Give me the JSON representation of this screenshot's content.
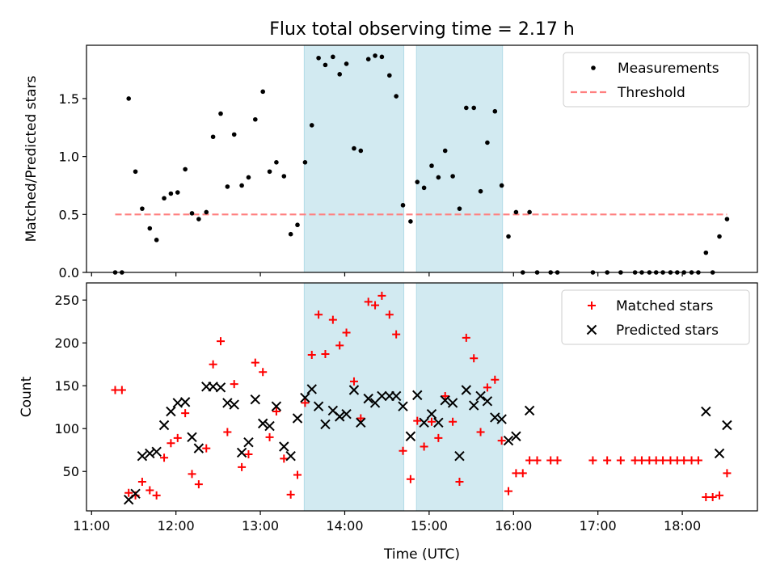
{
  "figure": {
    "title": "Flux total observing time = 2.17 h",
    "xlabel": "Time (UTC)",
    "x_ticks": [
      {
        "h": 11,
        "label": "11:00"
      },
      {
        "h": 12,
        "label": "12:00"
      },
      {
        "h": 13,
        "label": "13:00"
      },
      {
        "h": 14,
        "label": "14:00"
      },
      {
        "h": 15,
        "label": "15:00"
      },
      {
        "h": 16,
        "label": "16:00"
      },
      {
        "h": 17,
        "label": "17:00"
      },
      {
        "h": 18,
        "label": "18:00"
      }
    ],
    "shaded_intervals_hours": [
      [
        13.52,
        14.7
      ],
      [
        14.85,
        15.87
      ]
    ],
    "shade_color": "#add8e6"
  },
  "chart_data": [
    {
      "type": "scatter",
      "ylabel": "Matched/Predicted stars",
      "xlim_hours": [
        10.94,
        18.89
      ],
      "ylim": [
        0,
        1.96
      ],
      "y_ticks": [
        0.0,
        0.5,
        1.0,
        1.5
      ],
      "y_tick_labels": [
        "0.0",
        "0.5",
        "1.0",
        "1.5"
      ],
      "x_tick_labels_shown": false,
      "legend_position": "top-right",
      "series": [
        {
          "name": "Measurements",
          "marker": "dot",
          "color": "#000000",
          "points": [
            [
              11.28,
              0
            ],
            [
              11.36,
              0
            ],
            [
              11.44,
              1.5
            ],
            [
              11.52,
              0.87
            ],
            [
              11.6,
              0.55
            ],
            [
              11.69,
              0.38
            ],
            [
              11.77,
              0.28
            ],
            [
              11.86,
              0.64
            ],
            [
              11.94,
              0.68
            ],
            [
              12.02,
              0.69
            ],
            [
              12.11,
              0.89
            ],
            [
              12.19,
              0.51
            ],
            [
              12.27,
              0.46
            ],
            [
              12.36,
              0.52
            ],
            [
              12.44,
              1.17
            ],
            [
              12.53,
              1.37
            ],
            [
              12.61,
              0.74
            ],
            [
              12.69,
              1.19
            ],
            [
              12.78,
              0.75
            ],
            [
              12.86,
              0.82
            ],
            [
              12.94,
              1.32
            ],
            [
              13.03,
              1.56
            ],
            [
              13.11,
              0.87
            ],
            [
              13.19,
              0.95
            ],
            [
              13.28,
              0.83
            ],
            [
              13.36,
              0.33
            ],
            [
              13.44,
              0.41
            ],
            [
              13.53,
              0.95
            ],
            [
              13.61,
              1.27
            ],
            [
              13.69,
              1.85
            ],
            [
              13.77,
              1.79
            ],
            [
              13.86,
              1.86
            ],
            [
              13.94,
              1.71
            ],
            [
              14.02,
              1.8
            ],
            [
              14.11,
              1.07
            ],
            [
              14.19,
              1.05
            ],
            [
              14.28,
              1.84
            ],
            [
              14.36,
              1.87
            ],
            [
              14.44,
              1.86
            ],
            [
              14.53,
              1.7
            ],
            [
              14.61,
              1.52
            ],
            [
              14.69,
              0.58
            ],
            [
              14.78,
              0.44
            ],
            [
              14.86,
              0.78
            ],
            [
              14.94,
              0.73
            ],
            [
              15.03,
              0.92
            ],
            [
              15.11,
              0.82
            ],
            [
              15.19,
              1.05
            ],
            [
              15.28,
              0.83
            ],
            [
              15.36,
              0.55
            ],
            [
              15.44,
              1.42
            ],
            [
              15.53,
              1.42
            ],
            [
              15.61,
              0.7
            ],
            [
              15.69,
              1.12
            ],
            [
              15.78,
              1.39
            ],
            [
              15.86,
              0.75
            ],
            [
              15.94,
              0.31
            ],
            [
              16.03,
              0.52
            ],
            [
              16.11,
              0
            ],
            [
              16.19,
              0.52
            ],
            [
              16.28,
              0
            ],
            [
              16.44,
              0
            ],
            [
              16.52,
              0
            ],
            [
              16.94,
              0
            ],
            [
              17.11,
              0
            ],
            [
              17.27,
              0
            ],
            [
              17.44,
              0
            ],
            [
              17.52,
              0
            ],
            [
              17.61,
              0
            ],
            [
              17.69,
              0
            ],
            [
              17.77,
              0
            ],
            [
              17.86,
              0
            ],
            [
              17.94,
              0
            ],
            [
              18.02,
              0
            ],
            [
              18.11,
              0
            ],
            [
              18.19,
              0
            ],
            [
              18.28,
              0.17
            ],
            [
              18.36,
              0
            ],
            [
              18.44,
              0.31
            ],
            [
              18.53,
              0.46
            ]
          ]
        },
        {
          "name": "Threshold",
          "marker": "dashed-line",
          "color": "#ff7f7f",
          "points": [
            [
              11.28,
              0.5
            ],
            [
              18.53,
              0.5
            ]
          ]
        }
      ]
    },
    {
      "type": "scatter",
      "ylabel": "Count",
      "xlim_hours": [
        10.94,
        18.89
      ],
      "ylim": [
        4,
        270
      ],
      "y_ticks": [
        50,
        100,
        150,
        200,
        250
      ],
      "y_tick_labels": [
        "50",
        "100",
        "150",
        "200",
        "250"
      ],
      "x_tick_labels_shown": true,
      "legend_position": "top-right",
      "series": [
        {
          "name": "Matched stars",
          "marker": "plus",
          "color": "#ff0000",
          "points": [
            [
              11.28,
              145
            ],
            [
              11.36,
              145
            ],
            [
              11.44,
              25
            ],
            [
              11.52,
              22
            ],
            [
              11.6,
              38
            ],
            [
              11.69,
              28
            ],
            [
              11.77,
              22
            ],
            [
              11.86,
              66
            ],
            [
              11.94,
              83
            ],
            [
              12.02,
              89
            ],
            [
              12.11,
              118
            ],
            [
              12.19,
              47
            ],
            [
              12.27,
              35
            ],
            [
              12.36,
              77
            ],
            [
              12.44,
              175
            ],
            [
              12.53,
              202
            ],
            [
              12.61,
              96
            ],
            [
              12.69,
              152
            ],
            [
              12.78,
              55
            ],
            [
              12.86,
              70
            ],
            [
              12.94,
              177
            ],
            [
              13.03,
              166
            ],
            [
              13.11,
              90
            ],
            [
              13.19,
              120
            ],
            [
              13.28,
              65
            ],
            [
              13.36,
              23
            ],
            [
              13.44,
              46
            ],
            [
              13.53,
              130
            ],
            [
              13.61,
              186
            ],
            [
              13.69,
              233
            ],
            [
              13.77,
              187
            ],
            [
              13.86,
              227
            ],
            [
              13.94,
              197
            ],
            [
              14.02,
              212
            ],
            [
              14.11,
              155
            ],
            [
              14.19,
              112
            ],
            [
              14.28,
              248
            ],
            [
              14.36,
              244
            ],
            [
              14.44,
              255
            ],
            [
              14.53,
              233
            ],
            [
              14.61,
              210
            ],
            [
              14.69,
              74
            ],
            [
              14.78,
              41
            ],
            [
              14.86,
              109
            ],
            [
              14.94,
              79
            ],
            [
              15.03,
              108
            ],
            [
              15.11,
              89
            ],
            [
              15.19,
              138
            ],
            [
              15.28,
              108
            ],
            [
              15.36,
              38
            ],
            [
              15.44,
              206
            ],
            [
              15.53,
              182
            ],
            [
              15.61,
              96
            ],
            [
              15.69,
              148
            ],
            [
              15.78,
              157
            ],
            [
              15.86,
              86
            ],
            [
              15.94,
              27
            ],
            [
              16.03,
              48
            ],
            [
              16.11,
              48
            ],
            [
              16.19,
              63
            ],
            [
              16.28,
              63
            ],
            [
              16.44,
              63
            ],
            [
              16.52,
              63
            ],
            [
              16.94,
              63
            ],
            [
              17.11,
              63
            ],
            [
              17.27,
              63
            ],
            [
              17.44,
              63
            ],
            [
              17.52,
              63
            ],
            [
              17.61,
              63
            ],
            [
              17.69,
              63
            ],
            [
              17.77,
              63
            ],
            [
              17.86,
              63
            ],
            [
              17.94,
              63
            ],
            [
              18.02,
              63
            ],
            [
              18.11,
              63
            ],
            [
              18.19,
              63
            ],
            [
              18.28,
              20
            ],
            [
              18.36,
              20
            ],
            [
              18.44,
              22
            ],
            [
              18.53,
              48
            ]
          ]
        },
        {
          "name": "Predicted stars",
          "marker": "x",
          "color": "#000000",
          "points": [
            [
              11.44,
              17
            ],
            [
              11.52,
              24
            ],
            [
              11.6,
              68
            ],
            [
              11.69,
              71
            ],
            [
              11.77,
              73
            ],
            [
              11.86,
              104
            ],
            [
              11.94,
              120
            ],
            [
              12.02,
              130
            ],
            [
              12.11,
              131
            ],
            [
              12.19,
              90
            ],
            [
              12.27,
              77
            ],
            [
              12.36,
              149
            ],
            [
              12.44,
              149
            ],
            [
              12.53,
              148
            ],
            [
              12.61,
              130
            ],
            [
              12.69,
              128
            ],
            [
              12.78,
              72
            ],
            [
              12.86,
              84
            ],
            [
              12.94,
              134
            ],
            [
              13.03,
              106
            ],
            [
              13.11,
              103
            ],
            [
              13.19,
              126
            ],
            [
              13.28,
              79
            ],
            [
              13.36,
              68
            ],
            [
              13.44,
              112
            ],
            [
              13.53,
              136
            ],
            [
              13.61,
              146
            ],
            [
              13.69,
              126
            ],
            [
              13.77,
              105
            ],
            [
              13.86,
              121
            ],
            [
              13.94,
              114
            ],
            [
              14.02,
              117
            ],
            [
              14.11,
              145
            ],
            [
              14.19,
              107
            ],
            [
              14.28,
              135
            ],
            [
              14.36,
              130
            ],
            [
              14.44,
              138
            ],
            [
              14.53,
              138
            ],
            [
              14.61,
              138
            ],
            [
              14.69,
              126
            ],
            [
              14.78,
              91
            ],
            [
              14.86,
              139
            ],
            [
              14.94,
              107
            ],
            [
              15.03,
              117
            ],
            [
              15.11,
              107
            ],
            [
              15.19,
              133
            ],
            [
              15.28,
              130
            ],
            [
              15.36,
              68
            ],
            [
              15.44,
              145
            ],
            [
              15.53,
              127
            ],
            [
              15.61,
              138
            ],
            [
              15.69,
              132
            ],
            [
              15.78,
              113
            ],
            [
              15.86,
              111
            ],
            [
              15.94,
              86
            ],
            [
              16.03,
              91
            ],
            [
              16.19,
              121
            ],
            [
              18.28,
              120
            ],
            [
              18.44,
              71
            ],
            [
              18.53,
              104
            ]
          ]
        }
      ]
    }
  ]
}
